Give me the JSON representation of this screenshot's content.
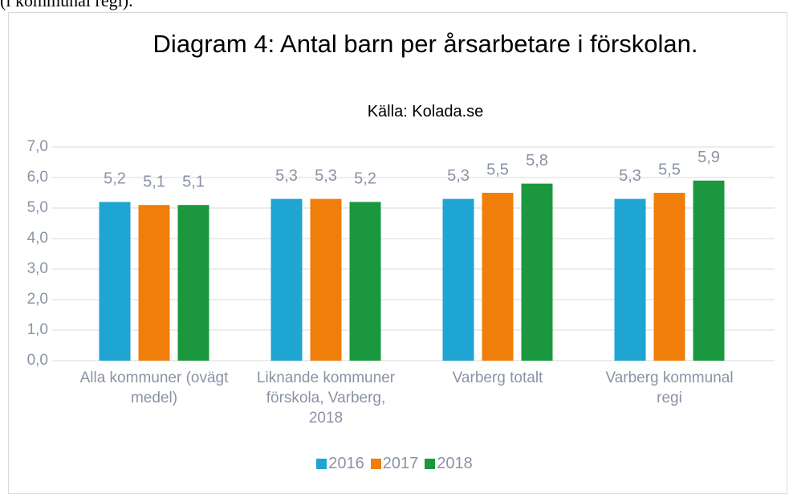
{
  "context_text": "(i kommunal regi).",
  "chart_data": {
    "type": "bar",
    "title": "Diagram 4: Antal barn per årsarbetare i förskolan.",
    "subtitle": "Källa: Kolada.se",
    "categories": [
      "Alla kommuner (ovägt medel)",
      "Liknande kommuner förskola, Varberg, 2018",
      "Varberg totalt",
      "Varberg kommunal regi"
    ],
    "series": [
      {
        "name": "2016",
        "color": "#1fa5d2",
        "values": [
          5.2,
          5.3,
          5.3,
          5.3
        ],
        "value_labels": [
          "5,2",
          "5,3",
          "5,3",
          "5,3"
        ]
      },
      {
        "name": "2017",
        "color": "#f07e0a",
        "values": [
          5.1,
          5.3,
          5.5,
          5.5
        ],
        "value_labels": [
          "5,1",
          "5,3",
          "5,5",
          "5,5"
        ]
      },
      {
        "name": "2018",
        "color": "#1b983f",
        "values": [
          5.1,
          5.2,
          5.8,
          5.9
        ],
        "value_labels": [
          "5,1",
          "5,2",
          "5,8",
          "5,9"
        ]
      }
    ],
    "ylim": [
      0,
      7
    ],
    "yticks": [
      {
        "value": 0,
        "label": "0,0"
      },
      {
        "value": 1,
        "label": "1,0"
      },
      {
        "value": 2,
        "label": "2,0"
      },
      {
        "value": 3,
        "label": "3,0"
      },
      {
        "value": 4,
        "label": "4,0"
      },
      {
        "value": 5,
        "label": "5,0"
      },
      {
        "value": 6,
        "label": "6,0"
      },
      {
        "value": 7,
        "label": "7,0"
      }
    ],
    "grid": true,
    "legend": "bottom"
  }
}
